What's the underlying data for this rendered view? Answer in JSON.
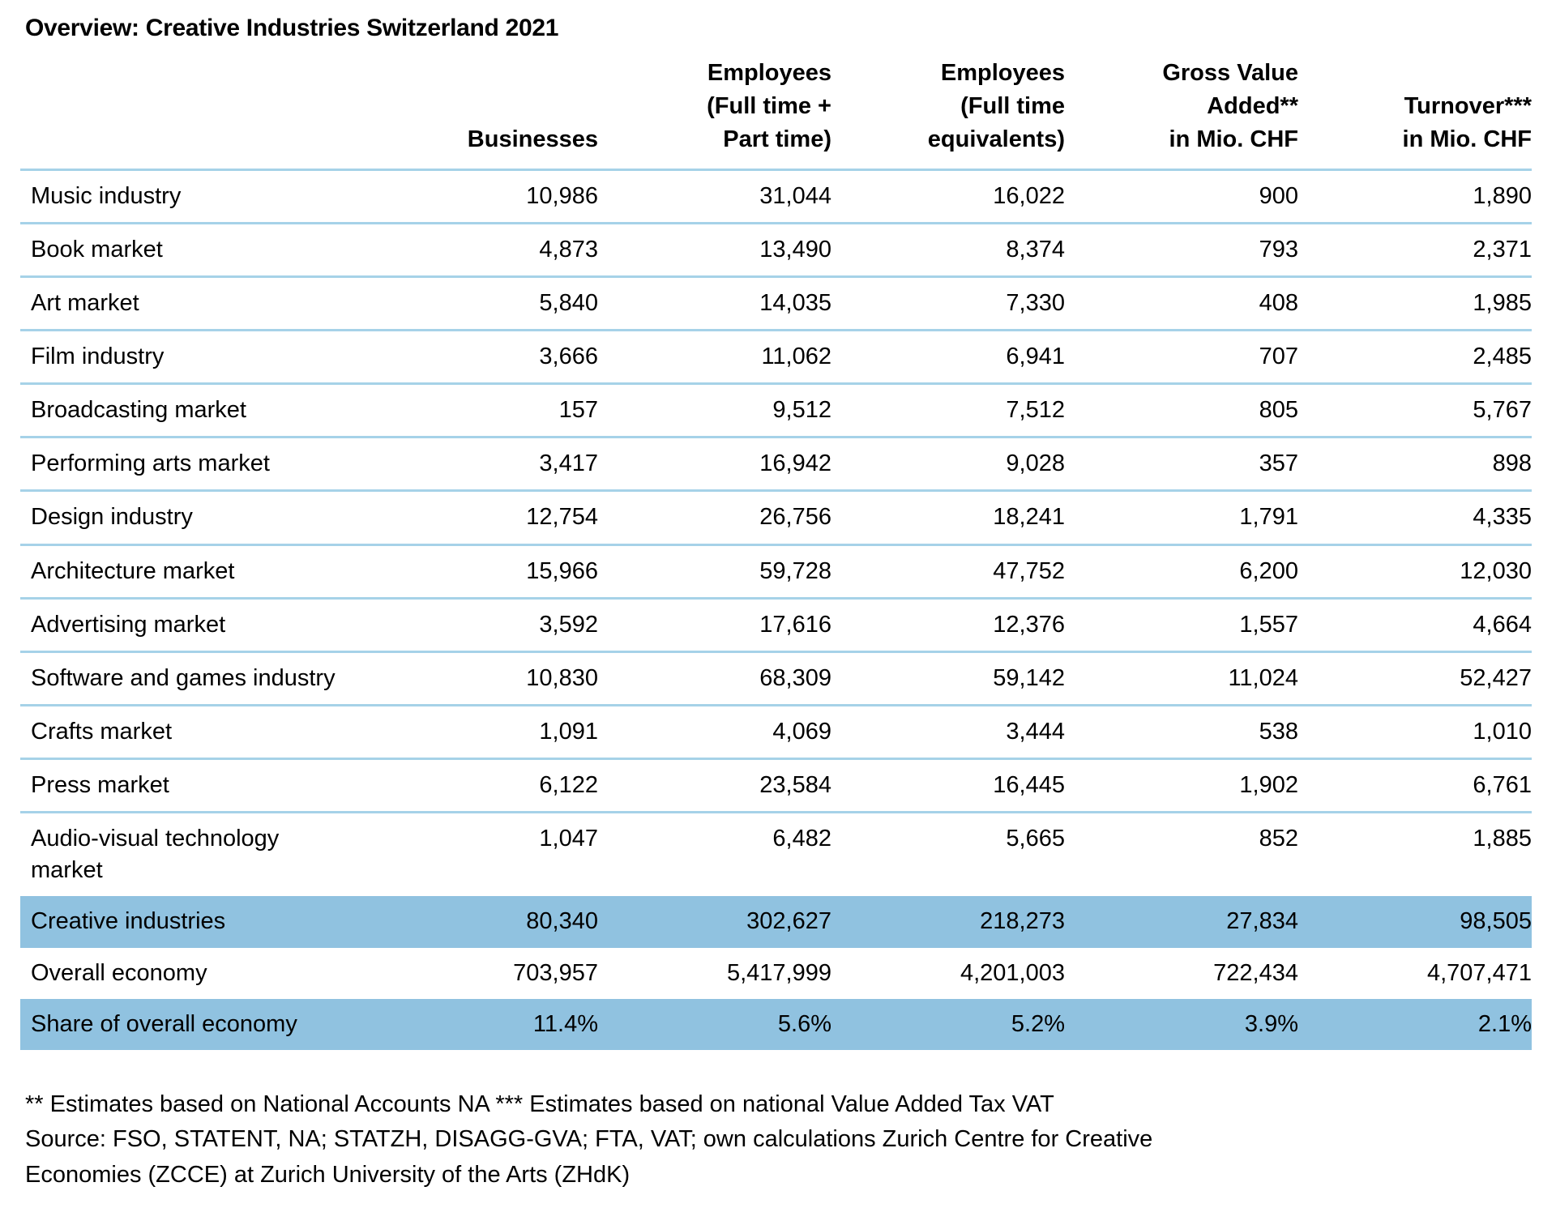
{
  "chart_data": {
    "type": "table",
    "title": "Overview: Creative Industries Switzerland 2021",
    "columns": [
      "Businesses",
      "Employees\n(Full time +\nPart time)",
      "Employees\n(Full time\nequivalents)",
      "Gross Value\nAdded**\nin Mio. CHF",
      "Turnover***\nin Mio. CHF"
    ],
    "rows": [
      {
        "label": "Music industry",
        "values": [
          "10,986",
          "31,044",
          "16,022",
          "900",
          "1,890"
        ],
        "highlight": false
      },
      {
        "label": "Book market",
        "values": [
          "4,873",
          "13,490",
          "8,374",
          "793",
          "2,371"
        ],
        "highlight": false
      },
      {
        "label": "Art market",
        "values": [
          "5,840",
          "14,035",
          "7,330",
          "408",
          "1,985"
        ],
        "highlight": false
      },
      {
        "label": "Film industry",
        "values": [
          "3,666",
          "11,062",
          "6,941",
          "707",
          "2,485"
        ],
        "highlight": false
      },
      {
        "label": "Broadcasting market",
        "values": [
          "157",
          "9,512",
          "7,512",
          "805",
          "5,767"
        ],
        "highlight": false
      },
      {
        "label": "Performing arts market",
        "values": [
          "3,417",
          "16,942",
          "9,028",
          "357",
          "898"
        ],
        "highlight": false
      },
      {
        "label": "Design industry",
        "values": [
          "12,754",
          "26,756",
          "18,241",
          "1,791",
          "4,335"
        ],
        "highlight": false
      },
      {
        "label": "Architecture market",
        "values": [
          "15,966",
          "59,728",
          "47,752",
          "6,200",
          "12,030"
        ],
        "highlight": false
      },
      {
        "label": "Advertising market",
        "values": [
          "3,592",
          "17,616",
          "12,376",
          "1,557",
          "4,664"
        ],
        "highlight": false
      },
      {
        "label": "Software and games industry",
        "values": [
          "10,830",
          "68,309",
          "59,142",
          "11,024",
          "52,427"
        ],
        "highlight": false
      },
      {
        "label": "Crafts market",
        "values": [
          "1,091",
          "4,069",
          "3,444",
          "538",
          "1,010"
        ],
        "highlight": false
      },
      {
        "label": "Press market",
        "values": [
          "6,122",
          "23,584",
          "16,445",
          "1,902",
          "6,761"
        ],
        "highlight": false
      },
      {
        "label": "Audio-visual technology market",
        "values": [
          "1,047",
          "6,482",
          "5,665",
          "852",
          "1,885"
        ],
        "highlight": false
      },
      {
        "label": "Creative industries",
        "values": [
          "80,340",
          "302,627",
          "218,273",
          "27,834",
          "98,505"
        ],
        "highlight": true
      },
      {
        "label": "Overall economy",
        "values": [
          "703,957",
          "5,417,999",
          "4,201,003",
          "722,434",
          "4,707,471"
        ],
        "highlight": false
      },
      {
        "label": "Share of overall economy",
        "values": [
          "11.4%",
          "5.6%",
          "5.2%",
          "3.9%",
          "2.1%"
        ],
        "highlight": true
      }
    ]
  },
  "footnotes": {
    "estimates": "** Estimates based on National Accounts NA *** Estimates based on national Value Added Tax VAT",
    "source": "Source: FSO, STATENT, NA; STATZH, DISAGG-GVA; FTA, VAT; own calculations Zurich Centre for Creative Economies (ZCCE) at Zurich University of the Arts (ZHdK)"
  },
  "colors": {
    "highlight_row": "#90c2e0",
    "rule_line": "#a6d2e8",
    "text": "#000000",
    "background": "#ffffff"
  }
}
